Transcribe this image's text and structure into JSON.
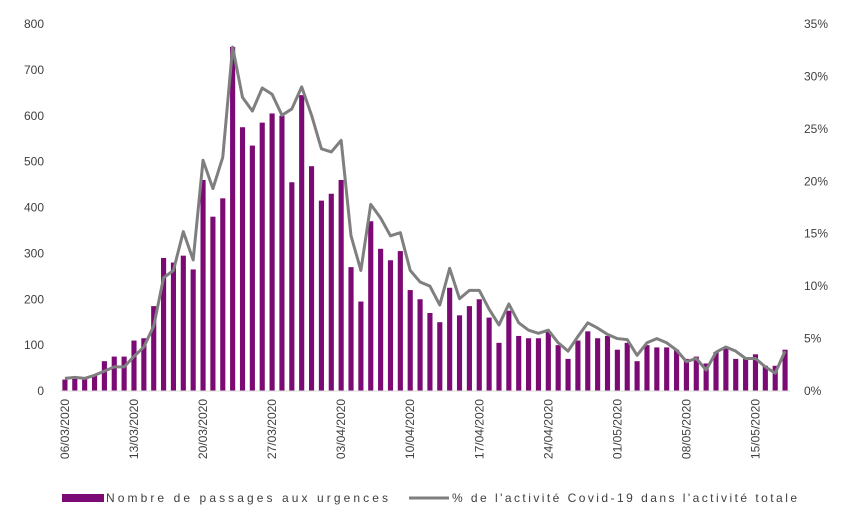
{
  "chart_data": {
    "type": "bar",
    "dates": [
      "06/03/2020",
      "07/03/2020",
      "08/03/2020",
      "09/03/2020",
      "10/03/2020",
      "11/03/2020",
      "12/03/2020",
      "13/03/2020",
      "14/03/2020",
      "15/03/2020",
      "16/03/2020",
      "17/03/2020",
      "18/03/2020",
      "19/03/2020",
      "20/03/2020",
      "21/03/2020",
      "22/03/2020",
      "23/03/2020",
      "24/03/2020",
      "25/03/2020",
      "26/03/2020",
      "27/03/2020",
      "28/03/2020",
      "29/03/2020",
      "30/03/2020",
      "31/03/2020",
      "01/04/2020",
      "02/04/2020",
      "03/04/2020",
      "04/04/2020",
      "05/04/2020",
      "06/04/2020",
      "07/04/2020",
      "08/04/2020",
      "09/04/2020",
      "10/04/2020",
      "11/04/2020",
      "12/04/2020",
      "13/04/2020",
      "14/04/2020",
      "15/04/2020",
      "16/04/2020",
      "17/04/2020",
      "18/04/2020",
      "19/04/2020",
      "20/04/2020",
      "21/04/2020",
      "22/04/2020",
      "23/04/2020",
      "24/04/2020",
      "25/04/2020",
      "26/04/2020",
      "27/04/2020",
      "28/04/2020",
      "29/04/2020",
      "30/04/2020",
      "01/05/2020",
      "02/05/2020",
      "03/05/2020",
      "04/05/2020",
      "05/05/2020",
      "06/05/2020",
      "07/05/2020",
      "08/05/2020",
      "09/05/2020",
      "10/05/2020",
      "11/05/2020",
      "12/05/2020",
      "13/05/2020",
      "14/05/2020",
      "15/05/2020",
      "16/05/2020",
      "17/05/2020",
      "18/05/2020"
    ],
    "x_tick_labels": [
      "06/03/2020",
      "13/03/2020",
      "20/03/2020",
      "27/03/2020",
      "03/04/2020",
      "10/04/2020",
      "17/04/2020",
      "24/04/2020",
      "01/05/2020",
      "08/05/2020",
      "15/05/2020"
    ],
    "series": [
      {
        "name": "Nombre de passages aux urgences",
        "kind": "bar",
        "axis": "left",
        "color": "#7b0a74",
        "values": [
          25,
          30,
          30,
          35,
          65,
          75,
          75,
          110,
          115,
          185,
          290,
          280,
          295,
          265,
          460,
          380,
          420,
          750,
          575,
          535,
          585,
          605,
          600,
          455,
          645,
          490,
          415,
          430,
          460,
          270,
          195,
          370,
          310,
          285,
          305,
          220,
          200,
          170,
          150,
          225,
          165,
          185,
          200,
          160,
          105,
          175,
          120,
          115,
          115,
          130,
          100,
          70,
          110,
          130,
          115,
          120,
          90,
          105,
          65,
          100,
          95,
          95,
          90,
          70,
          75,
          60,
          85,
          95,
          70,
          70,
          80,
          55,
          55,
          90
        ]
      },
      {
        "name": "% de l'activité Covid-19 dans l'activité totale",
        "kind": "line",
        "axis": "right",
        "color": "#7f7f7f",
        "values": [
          1.2,
          1.3,
          1.2,
          1.5,
          1.9,
          2.3,
          2.3,
          3.3,
          4.2,
          6.2,
          10.8,
          11.5,
          15.2,
          12.5,
          22.0,
          19.3,
          22.3,
          32.8,
          28.0,
          26.7,
          28.9,
          28.3,
          26.3,
          26.9,
          29.0,
          26.3,
          23.1,
          22.8,
          23.9,
          14.8,
          11.5,
          17.8,
          16.5,
          14.8,
          15.1,
          11.5,
          10.4,
          10.0,
          8.2,
          11.7,
          8.8,
          9.6,
          9.6,
          7.8,
          6.3,
          8.3,
          6.5,
          5.8,
          5.5,
          5.8,
          4.6,
          3.8,
          5.2,
          6.5,
          6.0,
          5.4,
          5.0,
          4.9,
          3.4,
          4.6,
          5.0,
          4.6,
          3.9,
          2.8,
          3.1,
          2.0,
          3.7,
          4.2,
          3.8,
          3.1,
          3.1,
          2.3,
          1.7,
          3.8
        ]
      }
    ],
    "y_left": {
      "ticks": [
        "0",
        "100",
        "200",
        "300",
        "400",
        "500",
        "600",
        "700",
        "800"
      ],
      "min": 0,
      "max": 800
    },
    "y_right": {
      "ticks": [
        "0%",
        "5%",
        "10%",
        "15%",
        "20%",
        "25%",
        "30%",
        "35%"
      ],
      "min": 0,
      "max": 35
    },
    "grid": false,
    "legend_position": "bottom",
    "legend": [
      {
        "label": "Nombre de passages aux urgences",
        "symbol": "bar",
        "color": "#7b0a74"
      },
      {
        "label": "% de l'activité Covid-19 dans l'activité totale",
        "symbol": "line",
        "color": "#7f7f7f"
      }
    ]
  }
}
